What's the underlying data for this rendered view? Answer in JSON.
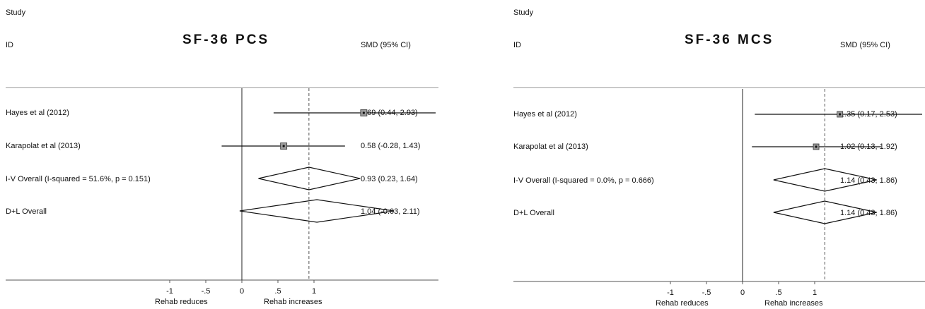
{
  "chart_data": [
    {
      "type": "forest",
      "title": "SF-36 PCS",
      "header_left_1": "Study",
      "header_left_2": "ID",
      "header_right": "SMD (95% CI)",
      "x_ticks": [
        -1,
        -0.5,
        0,
        0.5,
        1
      ],
      "x_tick_labels": [
        "-1",
        "-.5",
        "0",
        ".5",
        "1"
      ],
      "x_left_label": "Rehab reduces",
      "x_right_label": "Rehab increases",
      "null_line": 0,
      "overall_line": 0.93,
      "rows": [
        {
          "label": "Hayes et al (2012)",
          "kind": "study",
          "est": 1.69,
          "lo": 0.44,
          "hi": 2.93,
          "ci_text": "1.69 (0.44, 2.93)"
        },
        {
          "label": "Karapolat et al (2013)",
          "kind": "study",
          "est": 0.58,
          "lo": -0.28,
          "hi": 1.43,
          "ci_text": "0.58 (-0.28, 1.43)"
        },
        {
          "label": "I-V Overall  (I-squared = 51.6%, p = 0.151)",
          "kind": "pooled",
          "est": 0.93,
          "lo": 0.23,
          "hi": 1.64,
          "ci_text": "0.93 (0.23, 1.64)"
        },
        {
          "label": "D+L Overall",
          "kind": "pooled",
          "est": 1.04,
          "lo": -0.03,
          "hi": 2.11,
          "ci_text": "1.04 (-0.03, 2.11)"
        }
      ]
    },
    {
      "type": "forest",
      "title": "SF-36 MCS",
      "header_left_1": "Study",
      "header_left_2": "ID",
      "header_right": "SMD (95% CI)",
      "x_ticks": [
        -1,
        -0.5,
        0,
        0.5,
        1
      ],
      "x_tick_labels": [
        "-1",
        "-.5",
        "0",
        ".5",
        "1"
      ],
      "x_left_label": "Rehab reduces",
      "x_right_label": "Rehab increases",
      "null_line": 0,
      "overall_line": 1.14,
      "rows": [
        {
          "label": "Hayes et al (2012)",
          "kind": "study",
          "est": 1.35,
          "lo": 0.17,
          "hi": 2.53,
          "ci_text": "1.35 (0.17, 2.53)"
        },
        {
          "label": "Karapolat et al (2013)",
          "kind": "study",
          "est": 1.02,
          "lo": 0.13,
          "hi": 1.92,
          "ci_text": "1.02 (0.13, 1.92)"
        },
        {
          "label": "I-V Overall  (I-squared = 0.0%, p = 0.666)",
          "kind": "pooled",
          "est": 1.14,
          "lo": 0.43,
          "hi": 1.86,
          "ci_text": "1.14 (0.43, 1.86)"
        },
        {
          "label": "D+L Overall",
          "kind": "pooled",
          "est": 1.14,
          "lo": 0.43,
          "hi": 1.86,
          "ci_text": "1.14 (0.43, 1.86)"
        }
      ]
    }
  ]
}
